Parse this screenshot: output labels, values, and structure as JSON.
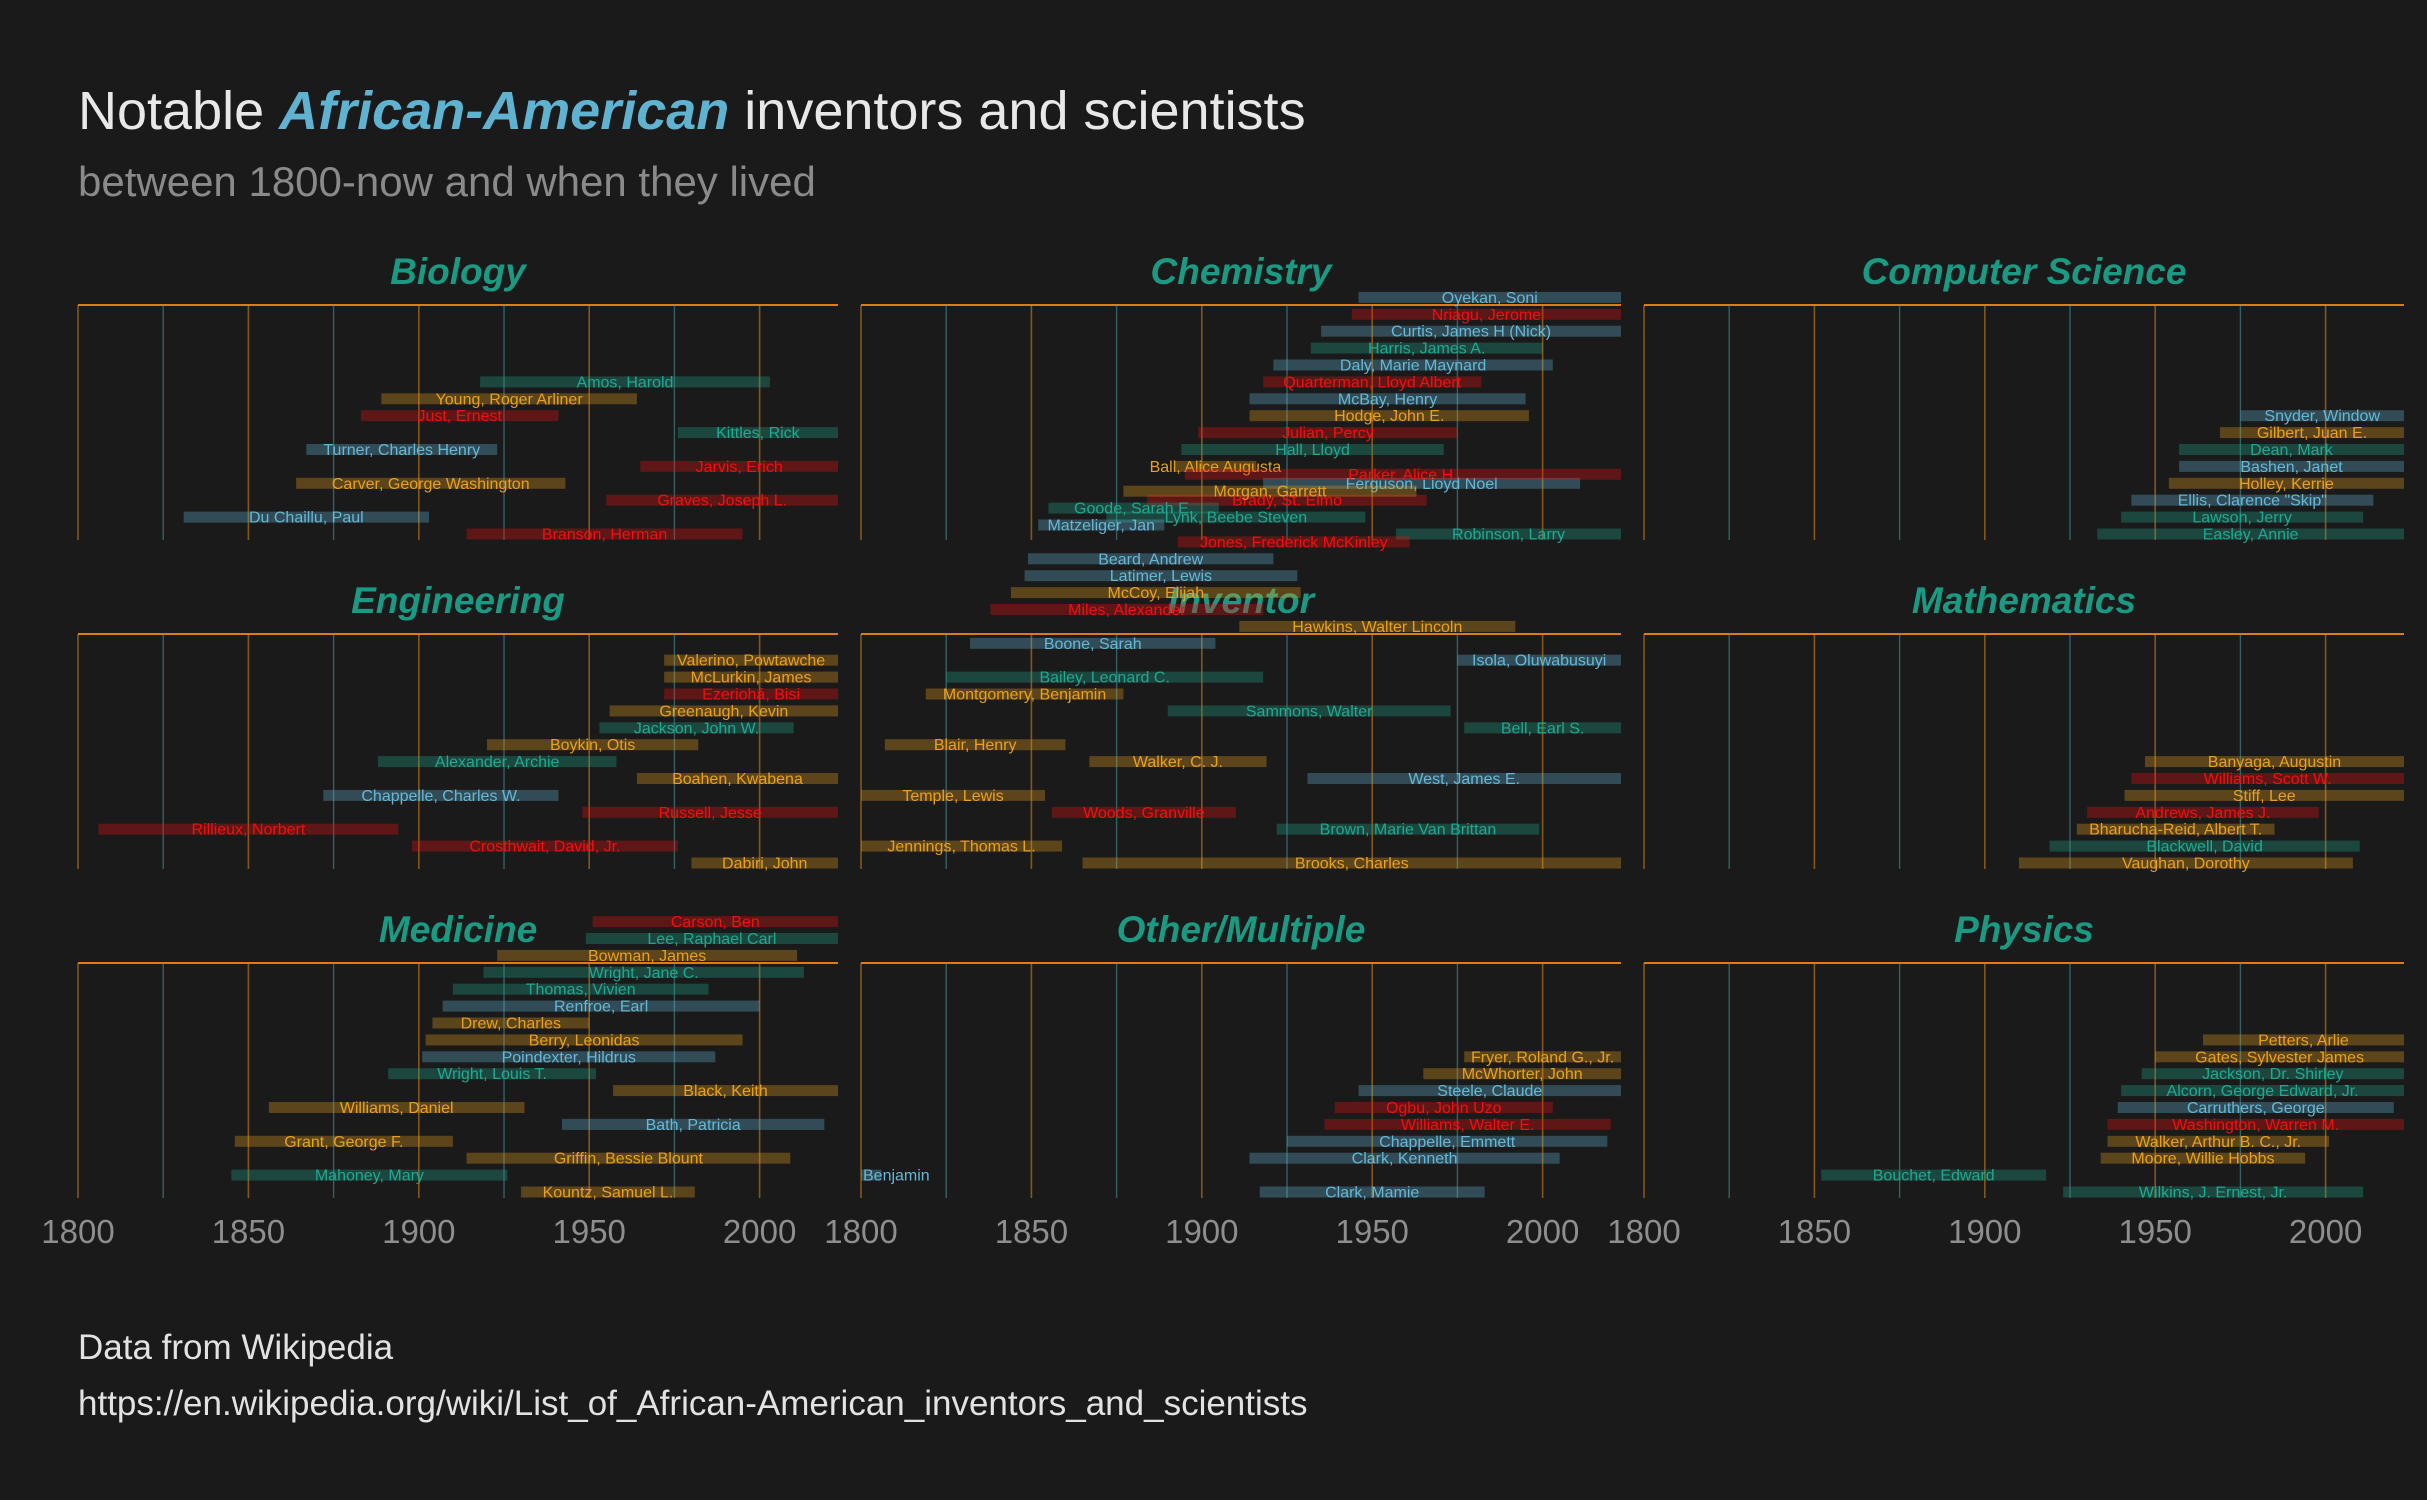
{
  "header": {
    "title_pre": "Notable ",
    "title_hl": "African-American",
    "title_post": " inventors and scientists",
    "subtitle": "between 1800-now and when they lived"
  },
  "caption": {
    "line1": "Data from Wikipedia",
    "line2": "https://en.wikipedia.org/wiki/List_of_African-American_inventors_and_scientists"
  },
  "colors": {
    "background": "#1a1a1a",
    "panel_title": "#1a9a82",
    "panel_rule": "#e07b14",
    "grid_orange": "#d98a1a",
    "grid_teal": "#4a9aa0",
    "series": [
      "#65b8d6",
      "#e8a020",
      "#f01010",
      "#21a890"
    ]
  },
  "chart_data": {
    "type": "timeline",
    "xlim": [
      1800,
      2023
    ],
    "x_ticks": [
      1800,
      1850,
      1900,
      1950,
      2000
    ],
    "panels": [
      {
        "name": "Biology",
        "people": [
          {
            "label": "Amos, Harold",
            "start": 1918,
            "end": 2003,
            "color": 3
          },
          {
            "label": "Young, Roger Arliner",
            "start": 1889,
            "end": 1964,
            "color": 1
          },
          {
            "label": "Just, Ernest",
            "start": 1883,
            "end": 1941,
            "color": 2
          },
          {
            "label": "Kittles, Rick",
            "start": 1976,
            "end": 2023,
            "color": 3
          },
          {
            "label": "Turner, Charles Henry",
            "start": 1867,
            "end": 1923,
            "color": 0
          },
          {
            "label": "Jarvis, Erich",
            "start": 1965,
            "end": 2023,
            "color": 2
          },
          {
            "label": "Carver, George Washington",
            "start": 1864,
            "end": 1943,
            "color": 1
          },
          {
            "label": "Graves, Joseph L.",
            "start": 1955,
            "end": 2023,
            "color": 2
          },
          {
            "label": "Du Chaillu, Paul",
            "start": 1831,
            "end": 1903,
            "color": 0
          },
          {
            "label": "Branson, Herman",
            "start": 1914,
            "end": 1995,
            "color": 2
          }
        ]
      },
      {
        "name": "Chemistry",
        "people": [
          {
            "label": "Oyekan, Soni",
            "start": 1946,
            "end": 2023,
            "color": 0
          },
          {
            "label": "Nriagu, Jerome",
            "start": 1944,
            "end": 2023,
            "color": 2
          },
          {
            "label": "Curtis, James H (Nick)",
            "start": 1935,
            "end": 2023,
            "color": 0
          },
          {
            "label": "Harris, James A.",
            "start": 1932,
            "end": 2000,
            "color": 3
          },
          {
            "label": "Daly, Marie Maynard",
            "start": 1921,
            "end": 2003,
            "color": 0
          },
          {
            "label": "Quarterman, Lloyd Albert",
            "start": 1918,
            "end": 1982,
            "color": 2
          },
          {
            "label": "McBay, Henry",
            "start": 1914,
            "end": 1995,
            "color": 0
          },
          {
            "label": "Hodge, John E.",
            "start": 1914,
            "end": 1996,
            "color": 1
          },
          {
            "label": "Julian, Percy",
            "start": 1899,
            "end": 1975,
            "color": 2
          },
          {
            "label": "Hall, Lloyd",
            "start": 1894,
            "end": 1971,
            "color": 3
          },
          {
            "label": "Ball, Alice Augusta",
            "start": 1892,
            "end": 1916,
            "color": 1
          },
          {
            "label": "Ferguson, Lloyd Noel",
            "start": 1918,
            "end": 2011,
            "color": 0
          },
          {
            "label": "Brady, St. Elmo",
            "start": 1884,
            "end": 1966,
            "color": 2
          },
          {
            "label": "Lynk, Beebe Steven",
            "start": 1872,
            "end": 1948,
            "color": 3
          },
          {
            "label": "Robinson, Larry",
            "start": 1957,
            "end": 2023,
            "color": 3
          }
        ]
      },
      {
        "name": "Computer Science",
        "people": [
          {
            "label": "Snyder, Window",
            "start": 1975,
            "end": 2023,
            "color": 0
          },
          {
            "label": "Gilbert, Juan E.",
            "start": 1969,
            "end": 2023,
            "color": 1
          },
          {
            "label": "Dean, Mark",
            "start": 1957,
            "end": 2023,
            "color": 3
          },
          {
            "label": "Bashen, Janet",
            "start": 1957,
            "end": 2023,
            "color": 0
          },
          {
            "label": "Holley, Kerrie",
            "start": 1954,
            "end": 2023,
            "color": 1
          },
          {
            "label": "Ellis, Clarence \"Skip\"",
            "start": 1943,
            "end": 2014,
            "color": 0
          },
          {
            "label": "Lawson, Jerry",
            "start": 1940,
            "end": 2011,
            "color": 3
          },
          {
            "label": "Easley, Annie",
            "start": 1933,
            "end": 2023,
            "color": 3
          }
        ]
      },
      {
        "name": "Engineering",
        "people": [
          {
            "label": "Valerino, Powtawche",
            "start": 1972,
            "end": 2023,
            "color": 1
          },
          {
            "label": "McLurkin, James",
            "start": 1972,
            "end": 2023,
            "color": 1
          },
          {
            "label": "Ezeriohá, Bisi",
            "start": 1972,
            "end": 2023,
            "color": 2
          },
          {
            "label": "Greenaugh, Kevin",
            "start": 1956,
            "end": 2023,
            "color": 1
          },
          {
            "label": "Jackson, John W.",
            "start": 1953,
            "end": 2010,
            "color": 3
          },
          {
            "label": "Boykin, Otis",
            "start": 1920,
            "end": 1982,
            "color": 1
          },
          {
            "label": "Alexander, Archie",
            "start": 1888,
            "end": 1958,
            "color": 3
          },
          {
            "label": "Boahen, Kwabena",
            "start": 1964,
            "end": 2023,
            "color": 1
          },
          {
            "label": "Chappelle, Charles W.",
            "start": 1872,
            "end": 1941,
            "color": 0
          },
          {
            "label": "Russell, Jesse",
            "start": 1948,
            "end": 2023,
            "color": 2
          },
          {
            "label": "Rillieux, Norbert",
            "start": 1806,
            "end": 1894,
            "color": 2
          },
          {
            "label": "Crosthwait, David, Jr.",
            "start": 1898,
            "end": 1976,
            "color": 2
          },
          {
            "label": "Dabiri, John",
            "start": 1980,
            "end": 2023,
            "color": 1
          }
        ]
      },
      {
        "name": "Inventor",
        "people": [
          {
            "label": "Parker, Alice H.",
            "start": 1895,
            "end": 2023,
            "color": 2
          },
          {
            "label": "Morgan, Garrett",
            "start": 1877,
            "end": 1963,
            "color": 1
          },
          {
            "label": "Goode, Sarah E.",
            "start": 1855,
            "end": 1905,
            "color": 3
          },
          {
            "label": "Matzeliger, Jan",
            "start": 1852,
            "end": 1889,
            "color": 0
          },
          {
            "label": "Jones, Frederick McKinley",
            "start": 1893,
            "end": 1961,
            "color": 2
          },
          {
            "label": "Beard, Andrew",
            "start": 1849,
            "end": 1921,
            "color": 0
          },
          {
            "label": "Latimer, Lewis",
            "start": 1848,
            "end": 1928,
            "color": 0
          },
          {
            "label": "McCoy, Elijah",
            "start": 1844,
            "end": 1929,
            "color": 1
          },
          {
            "label": "Miles, Alexander",
            "start": 1838,
            "end": 1918,
            "color": 2
          },
          {
            "label": "Hawkins, Walter Lincoln",
            "start": 1911,
            "end": 1992,
            "color": 1
          },
          {
            "label": "Boone, Sarah",
            "start": 1832,
            "end": 1904,
            "color": 0
          },
          {
            "label": "Isola, Oluwabusuyi",
            "start": 1975,
            "end": 2023,
            "color": 0
          },
          {
            "label": "Bailey, Leonard C.",
            "start": 1825,
            "end": 1918,
            "color": 3
          },
          {
            "label": "Montgomery, Benjamin",
            "start": 1819,
            "end": 1877,
            "color": 1
          },
          {
            "label": "Sammons, Walter",
            "start": 1890,
            "end": 1973,
            "color": 3
          },
          {
            "label": "Bell, Earl S.",
            "start": 1977,
            "end": 2023,
            "color": 3
          },
          {
            "label": "Blair, Henry",
            "start": 1807,
            "end": 1860,
            "color": 1
          },
          {
            "label": "Walker, C. J.",
            "start": 1867,
            "end": 1919,
            "color": 1
          },
          {
            "label": "West, James E.",
            "start": 1931,
            "end": 2023,
            "color": 0
          },
          {
            "label": "Temple, Lewis",
            "start": 1800,
            "end": 1854,
            "color": 1
          },
          {
            "label": "Woods, Granville",
            "start": 1856,
            "end": 1910,
            "color": 2
          },
          {
            "label": "Brown, Marie Van Brittan",
            "start": 1922,
            "end": 1999,
            "color": 3
          },
          {
            "label": "Jennings, Thomas L.",
            "start": 1800,
            "end": 1859,
            "color": 1
          },
          {
            "label": "Brooks, Charles",
            "start": 1865,
            "end": 2023,
            "color": 1
          }
        ]
      },
      {
        "name": "Mathematics",
        "people": [
          {
            "label": "Banyaga, Augustin",
            "start": 1947,
            "end": 2023,
            "color": 1
          },
          {
            "label": "Williams, Scott W.",
            "start": 1943,
            "end": 2023,
            "color": 2
          },
          {
            "label": "Stiff, Lee",
            "start": 1941,
            "end": 2023,
            "color": 1
          },
          {
            "label": "Andrews, James J.",
            "start": 1930,
            "end": 1998,
            "color": 2
          },
          {
            "label": "Bharucha-Reid, Albert T.",
            "start": 1927,
            "end": 1985,
            "color": 1
          },
          {
            "label": "Blackwell, David",
            "start": 1919,
            "end": 2010,
            "color": 3
          },
          {
            "label": "Vaughan, Dorothy",
            "start": 1910,
            "end": 2008,
            "color": 1
          }
        ]
      },
      {
        "name": "Medicine",
        "people": [
          {
            "label": "Carson, Ben",
            "start": 1951,
            "end": 2023,
            "color": 2
          },
          {
            "label": "Lee, Raphael Carl",
            "start": 1949,
            "end": 2023,
            "color": 3
          },
          {
            "label": "Bowman, James",
            "start": 1923,
            "end": 2011,
            "color": 1
          },
          {
            "label": "Wright, Jane C.",
            "start": 1919,
            "end": 2013,
            "color": 3
          },
          {
            "label": "Thomas, Vivien",
            "start": 1910,
            "end": 1985,
            "color": 3
          },
          {
            "label": "Renfroe, Earl",
            "start": 1907,
            "end": 2000,
            "color": 0
          },
          {
            "label": "Drew, Charles",
            "start": 1904,
            "end": 1950,
            "color": 1
          },
          {
            "label": "Berry, Leonidas",
            "start": 1902,
            "end": 1995,
            "color": 1
          },
          {
            "label": "Poindexter, Hildrus",
            "start": 1901,
            "end": 1987,
            "color": 0
          },
          {
            "label": "Wright, Louis T.",
            "start": 1891,
            "end": 1952,
            "color": 3
          },
          {
            "label": "Black, Keith",
            "start": 1957,
            "end": 2023,
            "color": 1
          },
          {
            "label": "Williams, Daniel",
            "start": 1856,
            "end": 1931,
            "color": 1
          },
          {
            "label": "Bath, Patricia",
            "start": 1942,
            "end": 2019,
            "color": 0
          },
          {
            "label": "Grant, George F.",
            "start": 1846,
            "end": 1910,
            "color": 1
          },
          {
            "label": "Griffin, Bessie Blount",
            "start": 1914,
            "end": 2009,
            "color": 1
          },
          {
            "label": "Mahoney, Mary",
            "start": 1845,
            "end": 1926,
            "color": 3
          },
          {
            "label": "Kountz, Samuel L.",
            "start": 1930,
            "end": 1981,
            "color": 1
          }
        ]
      },
      {
        "name": "Other/Multiple",
        "people": [
          {
            "label": "Fryer, Roland G., Jr.",
            "start": 1977,
            "end": 2023,
            "color": 1
          },
          {
            "label": "McWhorter, John",
            "start": 1965,
            "end": 2023,
            "color": 1
          },
          {
            "label": "Steele, Claude",
            "start": 1946,
            "end": 2023,
            "color": 0
          },
          {
            "label": "Ogbu, John Uzo",
            "start": 1939,
            "end": 2003,
            "color": 2
          },
          {
            "label": "Williams, Walter E.",
            "start": 1936,
            "end": 2020,
            "color": 2
          },
          {
            "label": "Chappelle, Emmett",
            "start": 1925,
            "end": 2019,
            "color": 0
          },
          {
            "label": "Clark, Kenneth",
            "start": 1914,
            "end": 2005,
            "color": 0
          },
          {
            "label": "Benjamin",
            "start": 1800,
            "end": 1806,
            "color": 0
          },
          {
            "label": "Clark, Mamie",
            "start": 1917,
            "end": 1983,
            "color": 0
          }
        ]
      },
      {
        "name": "Physics",
        "people": [
          {
            "label": "Petters, Arlie",
            "start": 1964,
            "end": 2023,
            "color": 1
          },
          {
            "label": "Gates, Sylvester James",
            "start": 1950,
            "end": 2023,
            "color": 1
          },
          {
            "label": "Jackson, Dr. Shirley",
            "start": 1946,
            "end": 2023,
            "color": 3
          },
          {
            "label": "Alcorn, George Edward, Jr.",
            "start": 1940,
            "end": 2023,
            "color": 3
          },
          {
            "label": "Carruthers, George",
            "start": 1939,
            "end": 2020,
            "color": 0
          },
          {
            "label": "Washington, Warren M.",
            "start": 1936,
            "end": 2023,
            "color": 2
          },
          {
            "label": "Walker, Arthur B. C., Jr.",
            "start": 1936,
            "end": 2001,
            "color": 1
          },
          {
            "label": "Moore, Willie Hobbs",
            "start": 1934,
            "end": 1994,
            "color": 1
          },
          {
            "label": "Bouchet, Edward",
            "start": 1852,
            "end": 1918,
            "color": 3
          },
          {
            "label": "Wilkins, J. Ernest, Jr.",
            "start": 1923,
            "end": 2011,
            "color": 3
          }
        ]
      }
    ]
  }
}
